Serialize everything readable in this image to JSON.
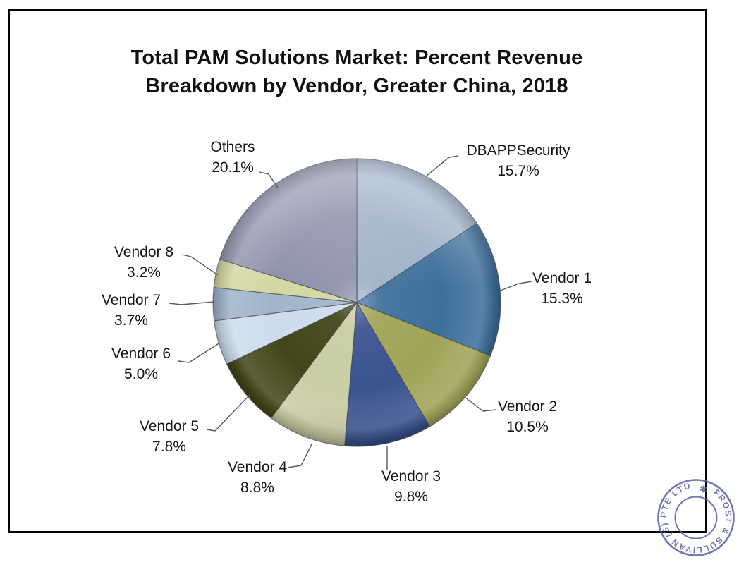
{
  "title": "Total PAM Solutions Market: Percent Revenue Breakdown by Vendor, Greater China, 2018",
  "chart_data": {
    "type": "pie",
    "title": "Total PAM Solutions Market: Percent Revenue Breakdown by Vendor, Greater China, 2018",
    "start_angle": "12 o'clock",
    "direction": "clockwise",
    "legend_position": "callout labels around pie",
    "labels": [
      "DBAPPSecurity",
      "Vendor 1",
      "Vendor 2",
      "Vendor 3",
      "Vendor 4",
      "Vendor 5",
      "Vendor 6",
      "Vendor 7",
      "Vendor 8",
      "Others"
    ],
    "values": [
      15.7,
      15.3,
      10.5,
      9.8,
      8.8,
      7.8,
      5.0,
      3.7,
      3.2,
      20.1
    ],
    "percent_labels": [
      "15.7%",
      "15.3%",
      "10.5%",
      "9.8%",
      "8.8%",
      "7.8%",
      "5.0%",
      "3.7%",
      "3.2%",
      "20.1%"
    ],
    "colors": [
      "#9db0c7",
      "#3d6f9b",
      "#a0a457",
      "#3b5391",
      "#c9cda3",
      "#434618",
      "#cddcec",
      "#a1b4cb",
      "#d4d6a2",
      "#8d90aa"
    ]
  },
  "stamp": {
    "ring_text": "FROST & SULLIVAN (S) PTE LTD",
    "star": "✱",
    "color": "#5a5fa8"
  }
}
